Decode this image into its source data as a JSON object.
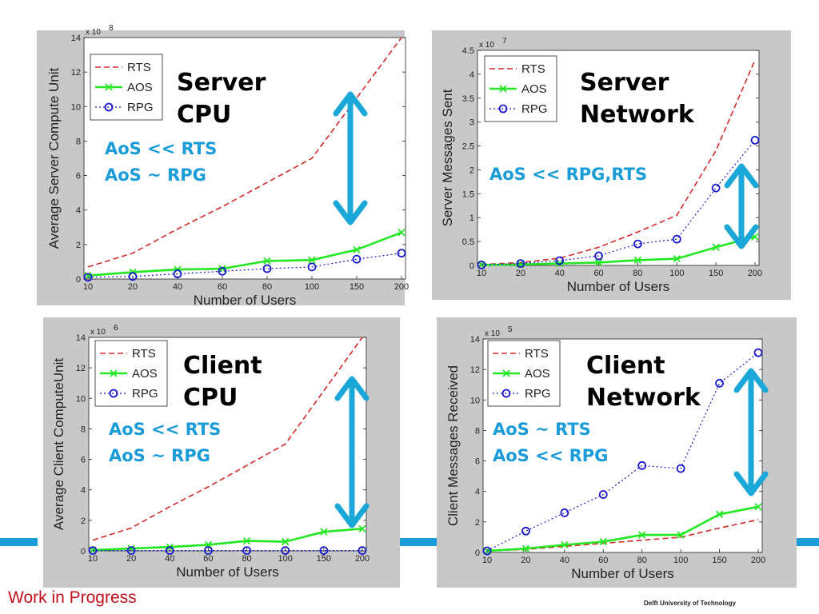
{
  "footer": {
    "left": "Work in Progress",
    "right": "Delft University of Technology"
  },
  "colors": {
    "stripe": "#1a9cd8",
    "RTS": "#d42a2a",
    "AOS": "#22e822",
    "RPG": "#1a1acc",
    "arrow": "#1aa8d8",
    "note": "#1a9cd8"
  },
  "chart_data": [
    {
      "type": "line",
      "overlay_title": [
        "Server",
        "CPU"
      ],
      "overlay_notes": [
        "AoS << RTS",
        "AoS ~ RPG"
      ],
      "xlabel": "Number of Users",
      "ylabel": "Average Server Compute Unit",
      "multiplier": "x 10",
      "multiplier_exp": "8",
      "categories": [
        "10",
        "20",
        "40",
        "60",
        "80",
        "100",
        "150",
        "200"
      ],
      "ylim": [
        0,
        14
      ],
      "yticks": [
        "0",
        "2",
        "4",
        "6",
        "8",
        "10",
        "12",
        "14"
      ],
      "legend_position": "top-left",
      "series": [
        {
          "name": "RTS",
          "values": [
            0.7,
            1.5,
            2.9,
            4.2,
            5.6,
            7.0,
            10.5,
            14.0
          ]
        },
        {
          "name": "AOS",
          "values": [
            0.2,
            0.4,
            0.55,
            0.6,
            1.05,
            1.1,
            1.7,
            2.7
          ]
        },
        {
          "name": "RPG",
          "values": [
            0.1,
            0.15,
            0.3,
            0.45,
            0.6,
            0.7,
            1.15,
            1.5
          ]
        }
      ]
    },
    {
      "type": "line",
      "overlay_title": [
        "Server",
        "Network"
      ],
      "overlay_notes": [
        "AoS << RPG,RTS"
      ],
      "xlabel": "Number of Users",
      "ylabel": "Server Messages Sent",
      "multiplier": "x 10",
      "multiplier_exp": "7",
      "categories": [
        "10",
        "20",
        "40",
        "60",
        "80",
        "100",
        "150",
        "200"
      ],
      "ylim": [
        0,
        4.5
      ],
      "yticks": [
        "0",
        "0.5",
        "1",
        "1.5",
        "2",
        "2.5",
        "3",
        "3.5",
        "4",
        "4.5"
      ],
      "legend_position": "top-left",
      "series": [
        {
          "name": "RTS",
          "values": [
            0.02,
            0.06,
            0.15,
            0.38,
            0.7,
            1.05,
            2.4,
            4.3
          ]
        },
        {
          "name": "AOS",
          "values": [
            0.01,
            0.02,
            0.04,
            0.06,
            0.11,
            0.14,
            0.38,
            0.6
          ]
        },
        {
          "name": "RPG",
          "values": [
            0.01,
            0.04,
            0.1,
            0.2,
            0.45,
            0.55,
            1.62,
            2.62
          ]
        }
      ]
    },
    {
      "type": "line",
      "overlay_title": [
        "Client",
        "CPU"
      ],
      "overlay_notes": [
        "AoS << RTS",
        "AoS ~ RPG"
      ],
      "xlabel": "Number of Users",
      "ylabel": "Average Client ComputeUnit",
      "multiplier": "x 10",
      "multiplier_exp": "6",
      "categories": [
        "10",
        "20",
        "40",
        "60",
        "80",
        "100",
        "150",
        "200"
      ],
      "ylim": [
        0,
        14
      ],
      "yticks": [
        "0",
        "2",
        "4",
        "6",
        "8",
        "10",
        "12",
        "14"
      ],
      "legend_position": "top-left",
      "series": [
        {
          "name": "RTS",
          "values": [
            0.7,
            1.5,
            2.9,
            4.2,
            5.6,
            7.0,
            10.5,
            14.0
          ]
        },
        {
          "name": "AOS",
          "values": [
            0.05,
            0.15,
            0.25,
            0.4,
            0.65,
            0.6,
            1.25,
            1.45
          ]
        },
        {
          "name": "RPG",
          "values": [
            0.02,
            0.02,
            0.02,
            0.02,
            0.02,
            0.02,
            0.02,
            0.02
          ]
        }
      ]
    },
    {
      "type": "line",
      "overlay_title": [
        "Client",
        "Network"
      ],
      "overlay_notes": [
        "AoS ~ RTS",
        "AoS << RPG"
      ],
      "xlabel": "Number of Users",
      "ylabel": "Client Messages Received",
      "multiplier": "x 10",
      "multiplier_exp": "5",
      "categories": [
        "10",
        "20",
        "40",
        "60",
        "80",
        "100",
        "150",
        "200"
      ],
      "ylim": [
        0,
        14
      ],
      "yticks": [
        "0",
        "2",
        "4",
        "6",
        "8",
        "10",
        "12",
        "14"
      ],
      "legend_position": "top-left",
      "series": [
        {
          "name": "RTS",
          "values": [
            0.1,
            0.2,
            0.4,
            0.6,
            0.8,
            1.0,
            1.6,
            2.15
          ]
        },
        {
          "name": "AOS",
          "values": [
            0.1,
            0.25,
            0.5,
            0.7,
            1.15,
            1.15,
            2.5,
            3.0
          ]
        },
        {
          "name": "RPG",
          "values": [
            0.1,
            1.4,
            2.6,
            3.8,
            5.7,
            5.5,
            11.1,
            13.1
          ]
        }
      ]
    }
  ]
}
